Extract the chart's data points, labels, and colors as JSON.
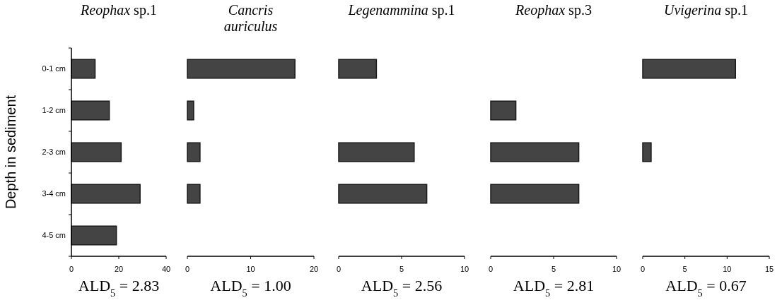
{
  "chart_data": [
    {
      "type": "bar",
      "orientation": "horizontal",
      "title": "Reophax sp.1",
      "ylabel": "Depth in sediment",
      "categories": [
        "0-1 cm",
        "1-2 cm",
        "2-3 cm",
        "3-4 cm",
        "4-5 cm"
      ],
      "values": [
        10,
        16,
        21,
        29,
        19
      ],
      "color": "#444444",
      "xlim": [
        0,
        40
      ],
      "xticks": [
        0,
        20,
        40
      ],
      "annotations": [
        "ALD$_{5}$ = 2.83"
      ]
    },
    {
      "type": "bar",
      "orientation": "horizontal",
      "title": "Cancris auriculus",
      "categories": [
        null,
        null,
        null,
        null,
        null
      ],
      "values": [
        17,
        1,
        2,
        2,
        0
      ],
      "color": "#444444",
      "xlim": [
        0,
        20
      ],
      "xticks": [
        0,
        10,
        20
      ],
      "tick_labels": "x",
      "annotations": [
        "ALD$_{5}$ = 1.00"
      ]
    },
    {
      "type": "bar",
      "orientation": "horizontal",
      "title": "Legenammina sp.1",
      "categories": [
        null,
        null,
        null,
        null,
        null
      ],
      "values": [
        3,
        0,
        6,
        7,
        0
      ],
      "color": "#444444",
      "xlim": [
        0,
        10
      ],
      "xticks": [
        0,
        5,
        10
      ],
      "tick_labels": "x",
      "annotations": [
        "ALD$_{5}$ = 2.56"
      ]
    },
    {
      "type": "bar",
      "orientation": "horizontal",
      "title": "Reophax sp.3",
      "categories": [
        null,
        null,
        null,
        null,
        null
      ],
      "values": [
        0,
        2,
        7,
        7,
        0
      ],
      "color": "#444444",
      "xlim": [
        0,
        10
      ],
      "xticks": [
        0,
        5,
        10
      ],
      "tick_labels": "x",
      "annotations": [
        "ALD$_{5}$ = 2.81"
      ]
    },
    {
      "type": "bar",
      "orientation": "horizontal",
      "title": "Uvigerina sp.1",
      "categories": [
        null,
        null,
        null,
        null,
        null
      ],
      "values": [
        11,
        0,
        1,
        0,
        0
      ],
      "color": "#444444",
      "xlim": [
        0,
        15
      ],
      "xticks": [
        0,
        5,
        10,
        15
      ],
      "tick_labels": "x",
      "annotations": [
        "ALD$_{5}$ = 0.67"
      ]
    }
  ]
}
